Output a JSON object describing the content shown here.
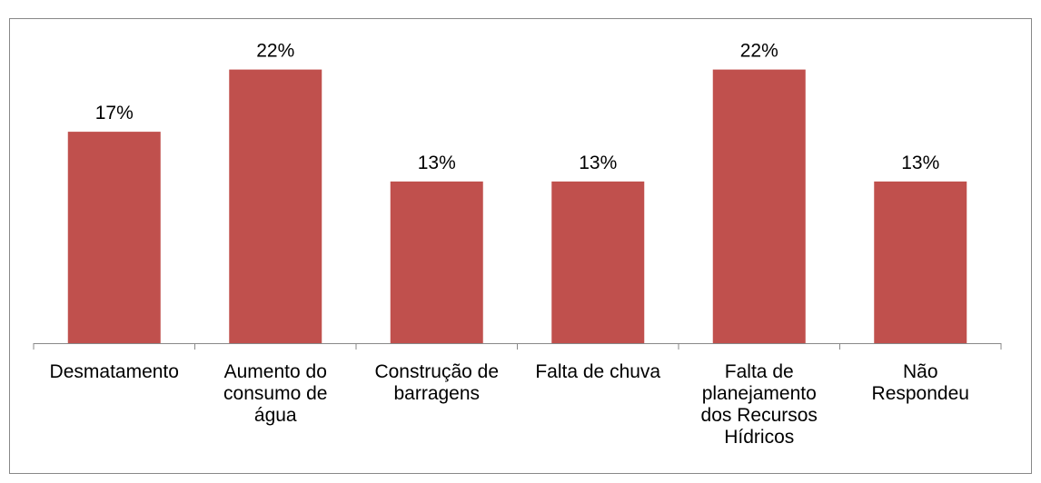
{
  "chart_data": {
    "type": "bar",
    "categories": [
      "Desmatamento",
      "Aumento do consumo de água",
      "Construção de barragens",
      "Falta de chuva",
      "Falta de planejamento dos Recursos Hídricos",
      "Não Respondeu"
    ],
    "values": [
      17,
      22,
      13,
      13,
      22,
      13
    ],
    "value_labels": [
      "17%",
      "22%",
      "13%",
      "13%",
      "22%",
      "13%"
    ],
    "color": "#c0504d"
  }
}
